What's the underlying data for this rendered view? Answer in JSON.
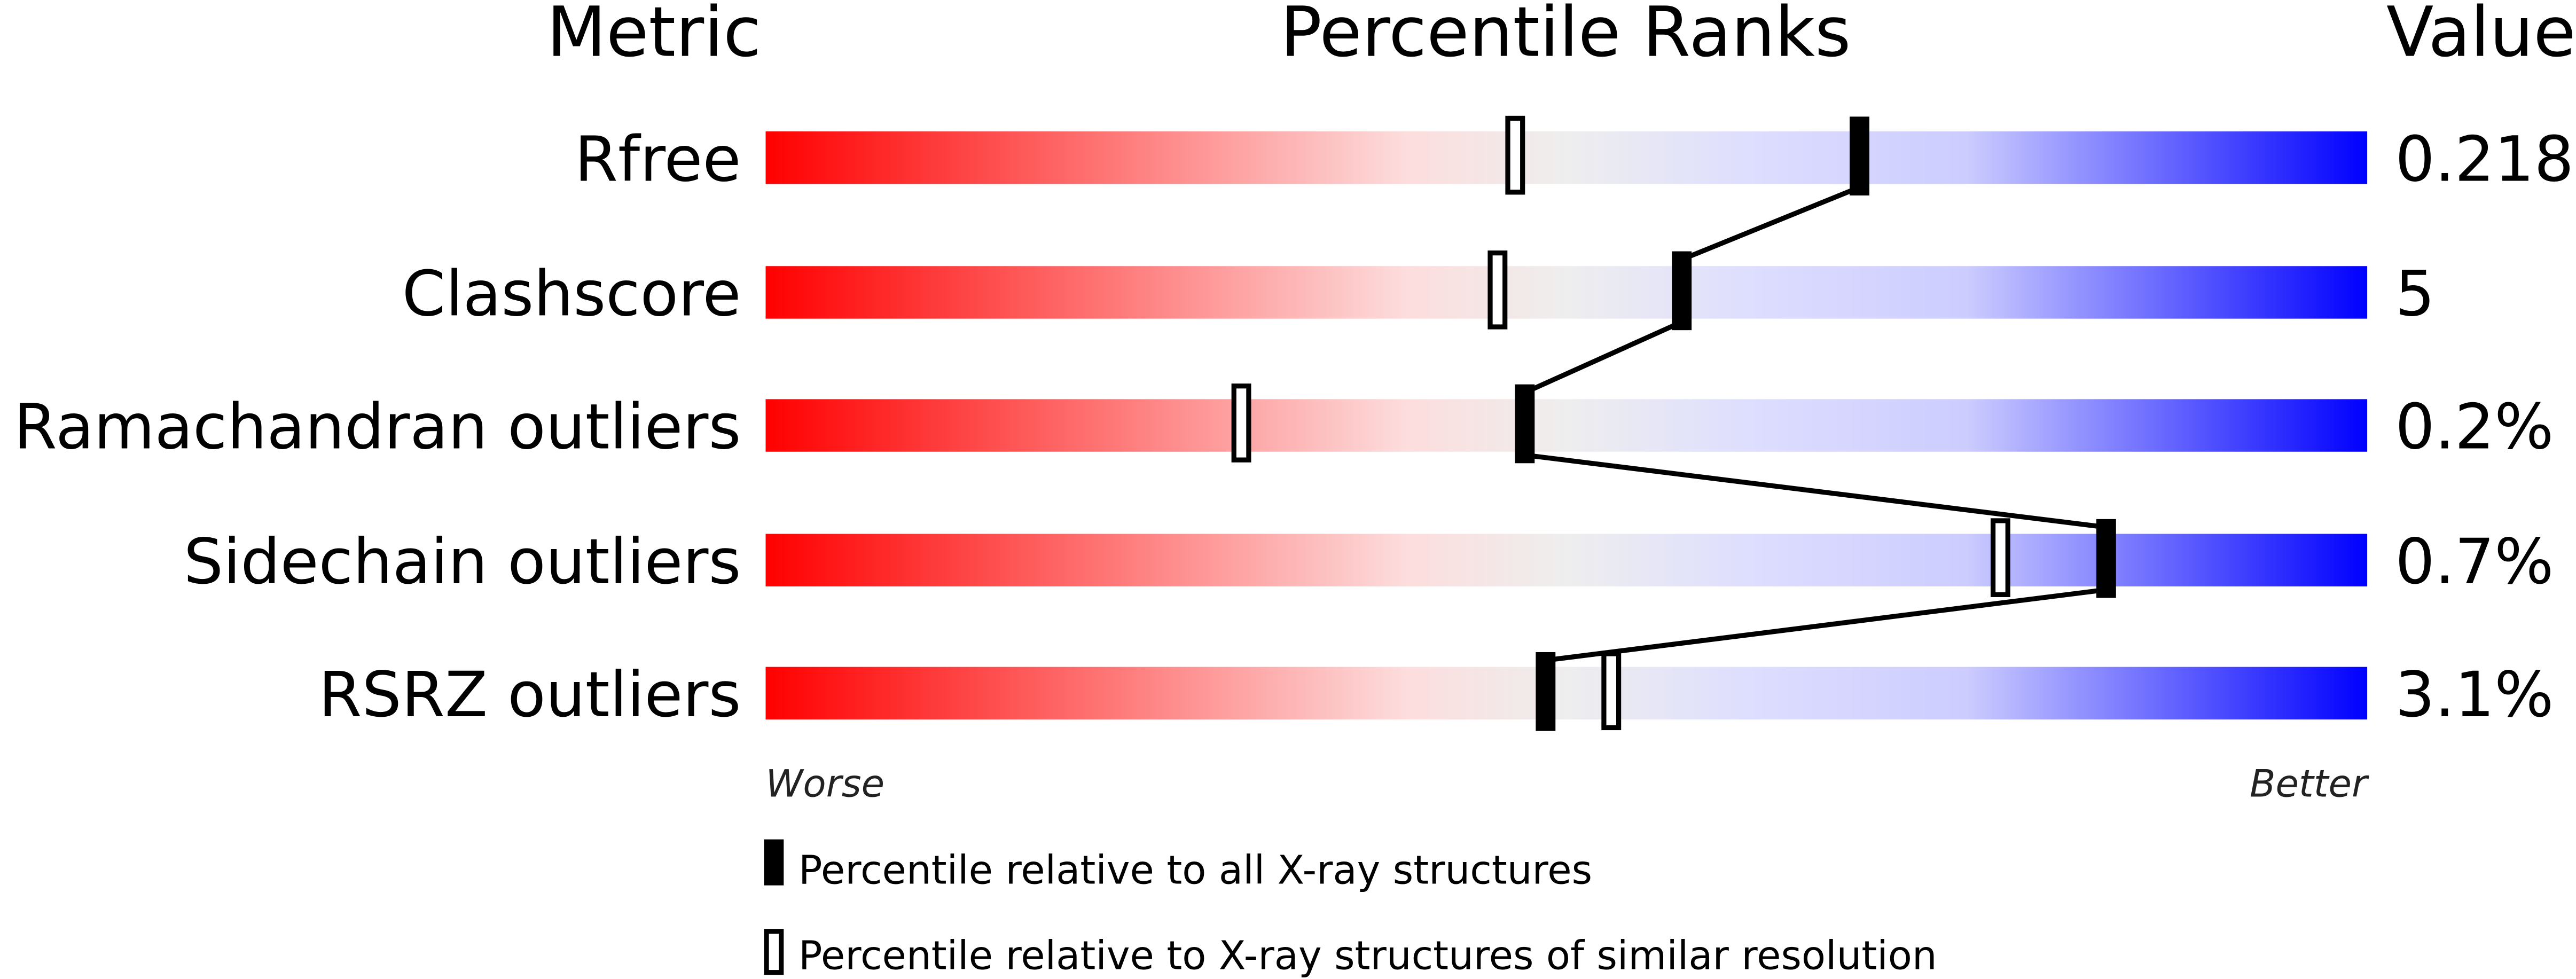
{
  "chart_data": {
    "type": "percentile-bar",
    "headers": {
      "metric": "Metric",
      "ranks": "Percentile Ranks",
      "value": "Value"
    },
    "xlim": [
      0,
      100
    ],
    "axis_labels": {
      "left": "Worse",
      "right": "Better"
    },
    "rows": [
      {
        "metric": "Rfree",
        "value": "0.218",
        "percentile_all": 68.3,
        "percentile_similar": 46.8
      },
      {
        "metric": "Clashscore",
        "value": "5",
        "percentile_all": 57.2,
        "percentile_similar": 45.7
      },
      {
        "metric": "Ramachandran outliers",
        "value": "0.2%",
        "percentile_all": 47.4,
        "percentile_similar": 29.7
      },
      {
        "metric": "Sidechain outliers",
        "value": "0.7%",
        "percentile_all": 83.7,
        "percentile_similar": 77.1
      },
      {
        "metric": "RSRZ outliers",
        "value": "3.1%",
        "percentile_all": 48.7,
        "percentile_similar": 52.8
      }
    ],
    "legend": [
      {
        "marker": "filled",
        "label": "Percentile relative to all X-ray structures"
      },
      {
        "marker": "open",
        "label": "Percentile relative to X-ray structures of similar resolution"
      }
    ],
    "gradient_colors": [
      "#ff0000",
      "#fddddd",
      "#eeeeee",
      "#ddddff",
      "#0000ff"
    ]
  }
}
